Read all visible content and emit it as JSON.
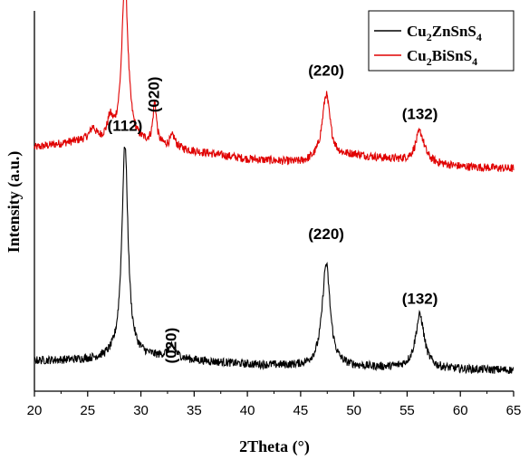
{
  "chart_data": {
    "type": "line",
    "xlabel": "2Theta (°)",
    "ylabel": "Intensity (a.u.)",
    "xlim": [
      20,
      65
    ],
    "xticks": [
      20,
      25,
      30,
      35,
      40,
      45,
      50,
      55,
      60,
      65
    ],
    "y_ticks_shown": false,
    "grid": false,
    "legend_position": "top-right",
    "series": [
      {
        "name": "Cu2BiSnS4",
        "legend_parts": [
          [
            "Cu",
            "n"
          ],
          [
            "2",
            "s"
          ],
          [
            "BiSnS",
            "n"
          ],
          [
            "4",
            "s"
          ]
        ],
        "color": "#e00000",
        "baseline": 0.6,
        "background": [
          [
            20,
            0.04
          ],
          [
            25,
            0.06
          ],
          [
            30,
            0.05
          ],
          [
            35,
            0.03
          ],
          [
            40,
            0.01
          ],
          [
            45,
            0.0
          ],
          [
            50,
            0.02
          ],
          [
            55,
            0.005
          ],
          [
            60,
            -0.01
          ],
          [
            65,
            -0.015
          ]
        ],
        "peaks": [
          {
            "x": 25.5,
            "h": 0.03,
            "w": 0.3
          },
          {
            "x": 27.1,
            "h": 0.05,
            "w": 0.3
          },
          {
            "x": 28.5,
            "h": 0.43,
            "w": 0.35
          },
          {
            "x": 31.3,
            "h": 0.11,
            "w": 0.2
          },
          {
            "x": 33.0,
            "h": 0.03,
            "w": 0.3
          },
          {
            "x": 47.4,
            "h": 0.17,
            "w": 0.45
          },
          {
            "x": 56.2,
            "h": 0.08,
            "w": 0.5
          }
        ]
      },
      {
        "name": "Cu2ZnSnS4",
        "legend_parts": [
          [
            "Cu",
            "n"
          ],
          [
            "2",
            "s"
          ],
          [
            "ZnSnS",
            "n"
          ],
          [
            "4",
            "s"
          ]
        ],
        "color": "#000000",
        "baseline": 0.06,
        "background": [
          [
            20,
            0.02
          ],
          [
            25,
            0.022
          ],
          [
            30,
            0.03
          ],
          [
            35,
            0.02
          ],
          [
            40,
            0.01
          ],
          [
            45,
            0.005
          ],
          [
            50,
            0.003
          ],
          [
            55,
            0.0
          ],
          [
            60,
            -0.003
          ],
          [
            65,
            -0.005
          ]
        ],
        "peaks": [
          {
            "x": 28.5,
            "h": 0.56,
            "w": 0.35
          },
          {
            "x": 32.9,
            "h": 0.03,
            "w": 0.5
          },
          {
            "x": 47.4,
            "h": 0.27,
            "w": 0.45
          },
          {
            "x": 56.2,
            "h": 0.14,
            "w": 0.5
          }
        ]
      }
    ],
    "annotations": [
      {
        "text": "(112)",
        "x": 28.5,
        "y": 1.055,
        "rotate": false
      },
      {
        "text": "(020)",
        "x": 31.7,
        "y": 0.78,
        "rotate": true
      },
      {
        "text": "(220)",
        "x": 47.4,
        "y": 0.83,
        "rotate": false
      },
      {
        "text": "(132)",
        "x": 56.2,
        "y": 0.715,
        "rotate": false
      },
      {
        "text": "(112)",
        "x": 28.5,
        "y": 0.685,
        "rotate": false
      },
      {
        "text": "(020)",
        "x": 33.3,
        "y": 0.12,
        "rotate": true
      },
      {
        "text": "(220)",
        "x": 47.4,
        "y": 0.4,
        "rotate": false
      },
      {
        "text": "(132)",
        "x": 56.2,
        "y": 0.23,
        "rotate": false
      }
    ]
  }
}
